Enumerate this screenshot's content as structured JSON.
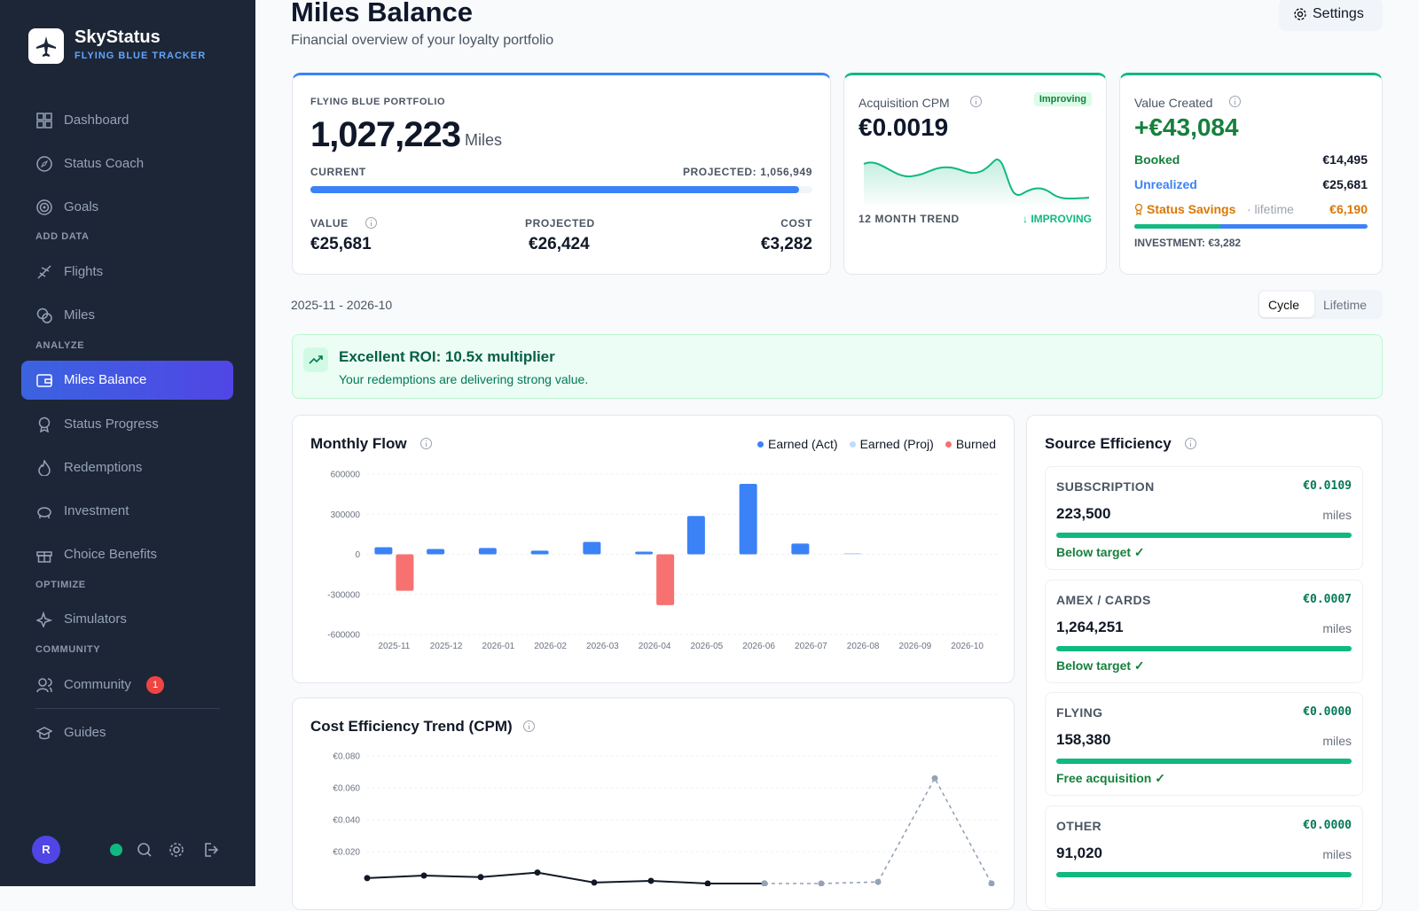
{
  "sidebar": {
    "brand": {
      "name": "SkyStatus",
      "tagline": "FLYING BLUE TRACKER"
    },
    "nav": [
      "Dashboard",
      "Status Coach",
      "Goals"
    ],
    "sections": [
      {
        "title": "ADD DATA",
        "items": [
          "Flights",
          "Miles"
        ]
      },
      {
        "title": "ANALYZE",
        "items": [
          "Miles Balance",
          "Status Progress",
          "Redemptions",
          "Investment",
          "Choice Benefits"
        ]
      },
      {
        "title": "OPTIMIZE",
        "items": [
          "Simulators"
        ]
      },
      {
        "title": "COMMUNITY",
        "items": [
          "Community"
        ],
        "badge": "1"
      }
    ],
    "footer_nav": [
      "Guides"
    ],
    "user_initial": "R"
  },
  "header": {
    "title": "Miles Balance",
    "subtitle": "Financial overview of your loyalty portfolio",
    "settings": "Settings"
  },
  "portfolio": {
    "label": "FLYING BLUE PORTFOLIO",
    "balance": "1,027,223",
    "unit": "Miles",
    "current_label": "CURRENT",
    "projected_label": "PROJECTED: 1,056,949",
    "stats": [
      {
        "label": "VALUE",
        "value": "€25,681"
      },
      {
        "label": "PROJECTED",
        "value": "€26,424"
      },
      {
        "label": "COST",
        "value": "€3,282"
      }
    ]
  },
  "cpm": {
    "label": "Acquisition CPM",
    "badge": "Improving",
    "value": "€0.0019",
    "trend_label": "12 MONTH TREND",
    "trend_status": "↓ IMPROVING"
  },
  "value_created": {
    "label": "Value Created",
    "value": "+€43,084",
    "rows": [
      {
        "label": "Booked",
        "value": "€14,495"
      },
      {
        "label": "Unrealized",
        "value": "€25,681"
      },
      {
        "label": "Status Savings",
        "note": "· lifetime",
        "value": "€6,190"
      }
    ],
    "investment": "INVESTMENT: €3,282"
  },
  "period": {
    "range": "2025-11 - 2026-10",
    "toggle": [
      "Cycle",
      "Lifetime"
    ]
  },
  "banner": {
    "title": "Excellent ROI: 10.5x multiplier",
    "text": "Your redemptions are delivering strong value."
  },
  "source_efficiency": {
    "title": "Source Efficiency",
    "sources": [
      {
        "name": "SUBSCRIPTION",
        "cpm": "€0.0109",
        "miles": "223,500",
        "unit": "miles",
        "status": "Below target ✓"
      },
      {
        "name": "AMEX / CARDS",
        "cpm": "€0.0007",
        "miles": "1,264,251",
        "unit": "miles",
        "status": "Below target ✓"
      },
      {
        "name": "FLYING",
        "cpm": "€0.0000",
        "miles": "158,380",
        "unit": "miles",
        "status": "Free acquisition ✓"
      },
      {
        "name": "OTHER",
        "cpm": "€0.0000",
        "miles": "91,020",
        "unit": "miles"
      }
    ]
  },
  "chart_data": [
    {
      "type": "bar",
      "title": "Monthly Flow",
      "categories": [
        "2025-11",
        "2025-12",
        "2026-01",
        "2026-02",
        "2026-03",
        "2026-04",
        "2026-05",
        "2026-06",
        "2026-07",
        "2026-08",
        "2026-09",
        "2026-10"
      ],
      "series": [
        {
          "name": "Earned (Act)",
          "color": "#3b82f6",
          "values": [
            53000,
            40000,
            47000,
            27000,
            93000,
            20000,
            287000,
            527000,
            80000,
            null,
            null,
            null
          ]
        },
        {
          "name": "Earned (Proj)",
          "color": "#bfdbfe",
          "values": [
            null,
            null,
            null,
            null,
            null,
            null,
            null,
            null,
            null,
            10000,
            null,
            null
          ]
        },
        {
          "name": "Burned",
          "color": "#f87171",
          "values": [
            -273000,
            null,
            null,
            null,
            null,
            -380000,
            null,
            null,
            null,
            null,
            null,
            null
          ]
        }
      ],
      "ylim": [
        -600000,
        600000
      ],
      "yticks": [
        -600000,
        -300000,
        0,
        300000,
        600000
      ],
      "grid": true
    },
    {
      "type": "line",
      "title": "Cost Efficiency Trend (CPM)",
      "series": [
        {
          "color": "#111827",
          "values": [
            0.0034,
            0.005,
            0.004,
            0.0069,
            0.0006,
            0.0017,
            0,
            0,
            null,
            null,
            null,
            null
          ]
        },
        {
          "color": "#94a3b8",
          "dashed": true,
          "values": [
            null,
            null,
            null,
            null,
            null,
            null,
            null,
            0,
            0,
            0.001,
            0.066,
            0
          ]
        }
      ],
      "ylim": [
        0,
        0.08
      ],
      "yticks": [
        {
          "value": 0.02,
          "label": "€0.020"
        },
        {
          "value": 0.04,
          "label": "€0.040"
        },
        {
          "value": 0.06,
          "label": "€0.060"
        },
        {
          "value": 0.08,
          "label": "€0.080"
        }
      ],
      "grid": true
    }
  ]
}
